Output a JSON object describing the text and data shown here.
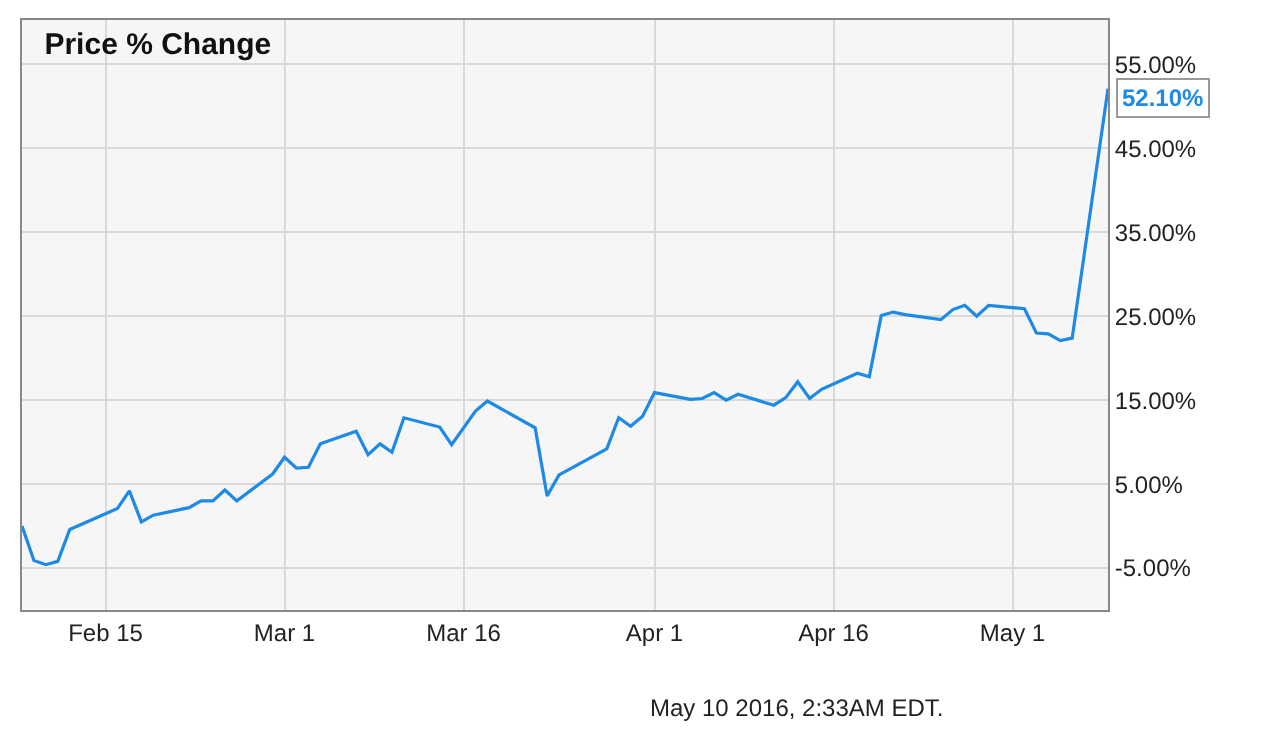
{
  "chart_data": {
    "type": "line",
    "title": "Price % Change",
    "x": [
      "2016-02-08",
      "2016-02-09",
      "2016-02-10",
      "2016-02-11",
      "2016-02-12",
      "2016-02-16",
      "2016-02-17",
      "2016-02-18",
      "2016-02-19",
      "2016-02-22",
      "2016-02-23",
      "2016-02-24",
      "2016-02-25",
      "2016-02-26",
      "2016-02-29",
      "2016-03-01",
      "2016-03-02",
      "2016-03-03",
      "2016-03-04",
      "2016-03-07",
      "2016-03-08",
      "2016-03-09",
      "2016-03-10",
      "2016-03-11",
      "2016-03-14",
      "2016-03-15",
      "2016-03-17",
      "2016-03-18",
      "2016-03-22",
      "2016-03-23",
      "2016-03-24",
      "2016-03-28",
      "2016-03-29",
      "2016-03-30",
      "2016-03-31",
      "2016-04-01",
      "2016-04-04",
      "2016-04-05",
      "2016-04-06",
      "2016-04-07",
      "2016-04-08",
      "2016-04-11",
      "2016-04-12",
      "2016-04-13",
      "2016-04-14",
      "2016-04-15",
      "2016-04-18",
      "2016-04-19",
      "2016-04-20",
      "2016-04-21",
      "2016-04-22",
      "2016-04-25",
      "2016-04-26",
      "2016-04-27",
      "2016-04-28",
      "2016-04-29",
      "2016-05-02",
      "2016-05-03",
      "2016-05-04",
      "2016-05-05",
      "2016-05-06",
      "2016-05-09"
    ],
    "series": [
      {
        "color": "#1e8ae6",
        "values": [
          0,
          -4.1,
          -4.6,
          -4.2,
          -0.4,
          2.1,
          4.2,
          0.5,
          1.3,
          2.2,
          3.0,
          3.0,
          4.3,
          3.0,
          6.2,
          8.2,
          6.9,
          7.0,
          9.8,
          11.3,
          8.5,
          9.8,
          8.8,
          12.9,
          11.8,
          9.7,
          13.7,
          14.9,
          11.7,
          3.6,
          6.1,
          9.2,
          12.9,
          11.9,
          13.1,
          15.9,
          15.1,
          15.2,
          15.9,
          15.0,
          15.7,
          14.4,
          15.3,
          17.2,
          15.2,
          16.3,
          18.2,
          17.8,
          25.1,
          25.5,
          25.2,
          24.6,
          25.8,
          26.3,
          25.0,
          26.3,
          25.9,
          23.0,
          22.9,
          22.1,
          22.4,
          52.1
        ],
        "value_labels": [
          null,
          null,
          null,
          null,
          null,
          null,
          null,
          null,
          null,
          null,
          null,
          null,
          null,
          null,
          null,
          null,
          null,
          null,
          null,
          null,
          null,
          null,
          null,
          null,
          null,
          null,
          null,
          null,
          null,
          null,
          null,
          null,
          null,
          null,
          null,
          null,
          null,
          null,
          null,
          null,
          null,
          null,
          null,
          null,
          null,
          null,
          null,
          null,
          null,
          null,
          null,
          null,
          null,
          null,
          null,
          null,
          null,
          null,
          null,
          null,
          null,
          "52.10%"
        ]
      }
    ],
    "xlim": [
      "2016-02-08",
      "2016-05-09"
    ],
    "xticks": [
      {
        "value": "2016-02-15",
        "label": "Feb 15"
      },
      {
        "value": "2016-03-01",
        "label": "Mar 1"
      },
      {
        "value": "2016-03-16",
        "label": "Mar 16"
      },
      {
        "value": "2016-04-01",
        "label": "Apr 1"
      },
      {
        "value": "2016-04-16",
        "label": "Apr 16"
      },
      {
        "value": "2016-05-01",
        "label": "May 1"
      }
    ],
    "ylim": [
      -10,
      60.3
    ],
    "yticks": [
      {
        "value": -5,
        "label": "-5.00%"
      },
      {
        "value": 5,
        "label": "5.00%"
      },
      {
        "value": 15,
        "label": "15.00%"
      },
      {
        "value": 25,
        "label": "25.00%"
      },
      {
        "value": 35,
        "label": "35.00%"
      },
      {
        "value": 45,
        "label": "45.00%"
      },
      {
        "value": 55,
        "label": "55.00%"
      }
    ],
    "grid": true,
    "marker": "none",
    "line_style": "solid",
    "annotations": [
      "May 10 2016, 2:33AM EDT."
    ]
  }
}
